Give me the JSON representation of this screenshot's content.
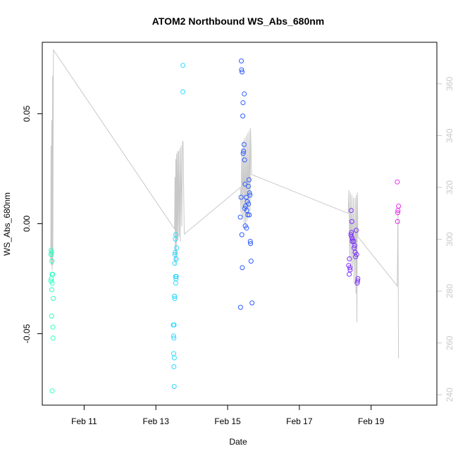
{
  "chart_data": {
    "type": "scatter",
    "title": "ATOM2 Northbound WS_Abs_680nm",
    "xlabel": "Date",
    "ylabel": "WS_Abs_680nm",
    "xlim": [
      "2021-02-09 20:00",
      "2021-02-20 20:00"
    ],
    "ylim": [
      -0.0825,
      0.0825
    ],
    "y2lim": [
      236,
      376
    ],
    "x_ticks": [
      {
        "at": "2021-02-11 00:00",
        "label": "Feb 11"
      },
      {
        "at": "2021-02-13 00:00",
        "label": "Feb 13"
      },
      {
        "at": "2021-02-15 00:00",
        "label": "Feb 15"
      },
      {
        "at": "2021-02-17 00:00",
        "label": "Feb 17"
      },
      {
        "at": "2021-02-19 00:00",
        "label": "Feb 19"
      }
    ],
    "y_ticks": [
      {
        "value": -0.05,
        "label": "-0.05"
      },
      {
        "value": 0.0,
        "label": "0.00"
      },
      {
        "value": 0.05,
        "label": "0.05"
      }
    ],
    "y2_ticks": [
      {
        "value": 240,
        "label": "240"
      },
      {
        "value": 260,
        "label": "260"
      },
      {
        "value": 280,
        "label": "280"
      },
      {
        "value": 300,
        "label": "300"
      },
      {
        "value": 320,
        "label": "320"
      },
      {
        "value": 340,
        "label": "340"
      },
      {
        "value": 360,
        "label": "360"
      }
    ],
    "point_colors": [
      "#2effc0",
      "#2ed8ff",
      "#2e5cff",
      "#7d2eff",
      "#e62eea"
    ],
    "line_color": "#c8c8c8",
    "grid": false,
    "series": [
      {
        "color": "#2effc0",
        "points": [
          [
            "2021-02-10 01:55",
            -0.012
          ],
          [
            "2021-02-10 02:10",
            -0.013
          ],
          [
            "2021-02-10 02:00",
            -0.014
          ],
          [
            "2021-02-10 01:50",
            -0.014
          ],
          [
            "2021-02-10 02:25",
            -0.017
          ],
          [
            "2021-02-10 02:05",
            -0.025
          ],
          [
            "2021-02-10 02:30",
            -0.023
          ],
          [
            "2021-02-10 01:45",
            -0.026
          ],
          [
            "2021-02-10 03:00",
            -0.023
          ],
          [
            "2021-02-10 02:40",
            -0.027
          ],
          [
            "2021-02-10 02:20",
            -0.03
          ],
          [
            "2021-02-10 03:20",
            -0.034
          ],
          [
            "2021-02-10 02:15",
            -0.042
          ],
          [
            "2021-02-10 03:05",
            -0.047
          ],
          [
            "2021-02-10 03:10",
            -0.052
          ],
          [
            "2021-02-10 02:35",
            -0.076
          ]
        ]
      },
      {
        "color": "#2ed8ff",
        "points": [
          [
            "2021-02-13 11:40",
            -0.046
          ],
          [
            "2021-02-13 12:10",
            -0.046
          ],
          [
            "2021-02-13 11:50",
            -0.051
          ],
          [
            "2021-02-13 12:00",
            -0.052
          ],
          [
            "2021-02-13 11:55",
            -0.059
          ],
          [
            "2021-02-13 12:20",
            -0.061
          ],
          [
            "2021-02-13 12:05",
            -0.065
          ],
          [
            "2021-02-13 12:15",
            -0.074
          ],
          [
            "2021-02-13 12:25",
            -0.033
          ],
          [
            "2021-02-13 12:40",
            -0.034
          ],
          [
            "2021-02-13 12:30",
            -0.033
          ],
          [
            "2021-02-13 12:35",
            -0.018
          ],
          [
            "2021-02-13 12:50",
            -0.014
          ],
          [
            "2021-02-13 12:55",
            -0.013
          ],
          [
            "2021-02-13 13:00",
            -0.007
          ],
          [
            "2021-02-13 13:20",
            -0.005
          ],
          [
            "2021-02-13 13:30",
            -0.016
          ],
          [
            "2021-02-13 13:35",
            -0.016
          ],
          [
            "2021-02-13 13:10",
            -0.024
          ],
          [
            "2021-02-13 13:25",
            -0.025
          ],
          [
            "2021-02-13 13:40",
            -0.024
          ],
          [
            "2021-02-13 13:15",
            -0.027
          ],
          [
            "2021-02-13 13:55",
            -0.011
          ],
          [
            "2021-02-13 18:10",
            0.072
          ],
          [
            "2021-02-13 18:05",
            0.06
          ]
        ]
      },
      {
        "color": "#2e5cff",
        "points": [
          [
            "2021-02-15 09:10",
            0.074
          ],
          [
            "2021-02-15 09:20",
            0.07
          ],
          [
            "2021-02-15 09:40",
            0.069
          ],
          [
            "2021-02-15 11:10",
            0.059
          ],
          [
            "2021-02-15 10:20",
            0.055
          ],
          [
            "2021-02-15 10:10",
            0.049
          ],
          [
            "2021-02-15 11:00",
            0.036
          ],
          [
            "2021-02-15 10:40",
            0.033
          ],
          [
            "2021-02-15 10:25",
            0.032
          ],
          [
            "2021-02-15 11:20",
            0.029
          ],
          [
            "2021-02-15 14:20",
            0.02
          ],
          [
            "2021-02-15 11:40",
            0.018
          ],
          [
            "2021-02-15 13:50",
            0.017
          ],
          [
            "2021-02-15 14:40",
            0.014
          ],
          [
            "2021-02-15 15:00",
            0.013
          ],
          [
            "2021-02-15 12:30",
            0.012
          ],
          [
            "2021-02-15 09:00",
            0.012
          ],
          [
            "2021-02-15 13:10",
            0.01
          ],
          [
            "2021-02-15 14:00",
            0.009
          ],
          [
            "2021-02-15 12:00",
            0.008
          ],
          [
            "2021-02-15 11:30",
            0.007
          ],
          [
            "2021-02-15 12:50",
            0.006
          ],
          [
            "2021-02-15 11:50",
            -0.001
          ],
          [
            "2021-02-15 13:30",
            0.004
          ],
          [
            "2021-02-15 14:30",
            0.004
          ],
          [
            "2021-02-15 08:30",
            0.003
          ],
          [
            "2021-02-15 12:40",
            -0.002
          ],
          [
            "2021-02-15 09:30",
            -0.005
          ],
          [
            "2021-02-15 15:10",
            -0.008
          ],
          [
            "2021-02-15 15:20",
            -0.009
          ],
          [
            "2021-02-15 15:40",
            -0.017
          ],
          [
            "2021-02-15 09:50",
            -0.02
          ],
          [
            "2021-02-15 16:20",
            -0.036
          ],
          [
            "2021-02-15 08:40",
            -0.038
          ]
        ]
      },
      {
        "color": "#7d2eff",
        "points": [
          [
            "2021-02-18 10:40",
            0.006
          ],
          [
            "2021-02-18 11:10",
            0.001
          ],
          [
            "2021-02-18 10:50",
            -0.004
          ],
          [
            "2021-02-18 10:30",
            -0.005
          ],
          [
            "2021-02-18 11:00",
            -0.006
          ],
          [
            "2021-02-18 11:30",
            -0.007
          ],
          [
            "2021-02-18 11:20",
            -0.008
          ],
          [
            "2021-02-18 12:20",
            -0.008
          ],
          [
            "2021-02-18 13:00",
            -0.01
          ],
          [
            "2021-02-18 12:40",
            -0.011
          ],
          [
            "2021-02-18 13:20",
            -0.013
          ],
          [
            "2021-02-18 14:00",
            -0.003
          ],
          [
            "2021-02-18 14:20",
            -0.014
          ],
          [
            "2021-02-18 13:40",
            -0.015
          ],
          [
            "2021-02-18 09:30",
            -0.016
          ],
          [
            "2021-02-18 09:00",
            -0.019
          ],
          [
            "2021-02-18 09:50",
            -0.02
          ],
          [
            "2021-02-18 10:00",
            -0.021
          ],
          [
            "2021-02-18 09:20",
            -0.023
          ],
          [
            "2021-02-18 15:10",
            -0.025
          ],
          [
            "2021-02-18 14:40",
            -0.027
          ],
          [
            "2021-02-18 15:00",
            -0.026
          ]
        ]
      },
      {
        "color": "#e62eea",
        "points": [
          [
            "2021-02-19 17:30",
            0.019
          ],
          [
            "2021-02-19 18:20",
            0.008
          ],
          [
            "2021-02-19 18:00",
            0.006
          ],
          [
            "2021-02-19 17:50",
            0.005
          ],
          [
            "2021-02-19 17:40",
            0.001
          ]
        ]
      }
    ],
    "line": {
      "axis": "right",
      "points": [
        [
          "2021-02-10 01:40",
          292
        ],
        [
          "2021-02-10 01:50",
          336
        ],
        [
          "2021-02-10 02:05",
          290
        ],
        [
          "2021-02-10 02:20",
          346
        ],
        [
          "2021-02-10 02:35",
          288
        ],
        [
          "2021-02-10 02:55",
          363
        ],
        [
          "2021-02-10 03:05",
          290
        ],
        [
          "2021-02-10 03:25",
          366
        ],
        [
          "2021-02-10 03:30",
          373
        ],
        [
          "2021-02-13 12:30",
          304
        ],
        [
          "2021-02-13 12:45",
          324
        ],
        [
          "2021-02-13 13:00",
          290
        ],
        [
          "2021-02-13 13:20",
          331
        ],
        [
          "2021-02-13 13:40",
          292
        ],
        [
          "2021-02-13 13:50",
          333
        ],
        [
          "2021-02-13 14:10",
          299
        ],
        [
          "2021-02-13 14:30",
          334
        ],
        [
          "2021-02-13 14:50",
          300
        ],
        [
          "2021-02-13 15:10",
          334
        ],
        [
          "2021-02-13 15:40",
          301
        ],
        [
          "2021-02-13 16:00",
          335
        ],
        [
          "2021-02-13 16:20",
          299
        ],
        [
          "2021-02-13 16:50",
          336
        ],
        [
          "2021-02-13 17:20",
          305
        ],
        [
          "2021-02-13 17:50",
          337
        ],
        [
          "2021-02-13 18:10",
          338
        ],
        [
          "2021-02-13 19:00",
          302
        ],
        [
          "2021-02-15 08:30",
          320
        ],
        [
          "2021-02-15 09:00",
          310
        ],
        [
          "2021-02-15 09:30",
          335
        ],
        [
          "2021-02-15 10:00",
          308
        ],
        [
          "2021-02-15 10:30",
          338
        ],
        [
          "2021-02-15 11:00",
          306
        ],
        [
          "2021-02-15 11:30",
          339
        ],
        [
          "2021-02-15 12:00",
          305
        ],
        [
          "2021-02-15 12:30",
          340
        ],
        [
          "2021-02-15 13:00",
          307
        ],
        [
          "2021-02-15 13:30",
          341
        ],
        [
          "2021-02-15 14:00",
          309
        ],
        [
          "2021-02-15 14:30",
          342
        ],
        [
          "2021-02-15 15:00",
          311
        ],
        [
          "2021-02-15 15:20",
          343
        ],
        [
          "2021-02-15 16:00",
          325
        ],
        [
          "2021-02-18 08:40",
          310
        ],
        [
          "2021-02-18 09:10",
          319
        ],
        [
          "2021-02-18 09:40",
          292
        ],
        [
          "2021-02-18 10:10",
          318
        ],
        [
          "2021-02-18 10:40",
          290
        ],
        [
          "2021-02-18 11:10",
          317
        ],
        [
          "2021-02-18 11:40",
          289
        ],
        [
          "2021-02-18 12:10",
          316
        ],
        [
          "2021-02-18 12:40",
          283
        ],
        [
          "2021-02-18 13:20",
          316
        ],
        [
          "2021-02-18 13:50",
          279
        ],
        [
          "2021-02-18 14:10",
          317
        ],
        [
          "2021-02-18 14:30",
          268
        ],
        [
          "2021-02-18 14:50",
          318
        ],
        [
          "2021-02-18 15:10",
          301
        ],
        [
          "2021-02-19 17:30",
          282
        ],
        [
          "2021-02-19 18:00",
          311
        ],
        [
          "2021-02-19 18:20",
          254
        ]
      ]
    }
  }
}
